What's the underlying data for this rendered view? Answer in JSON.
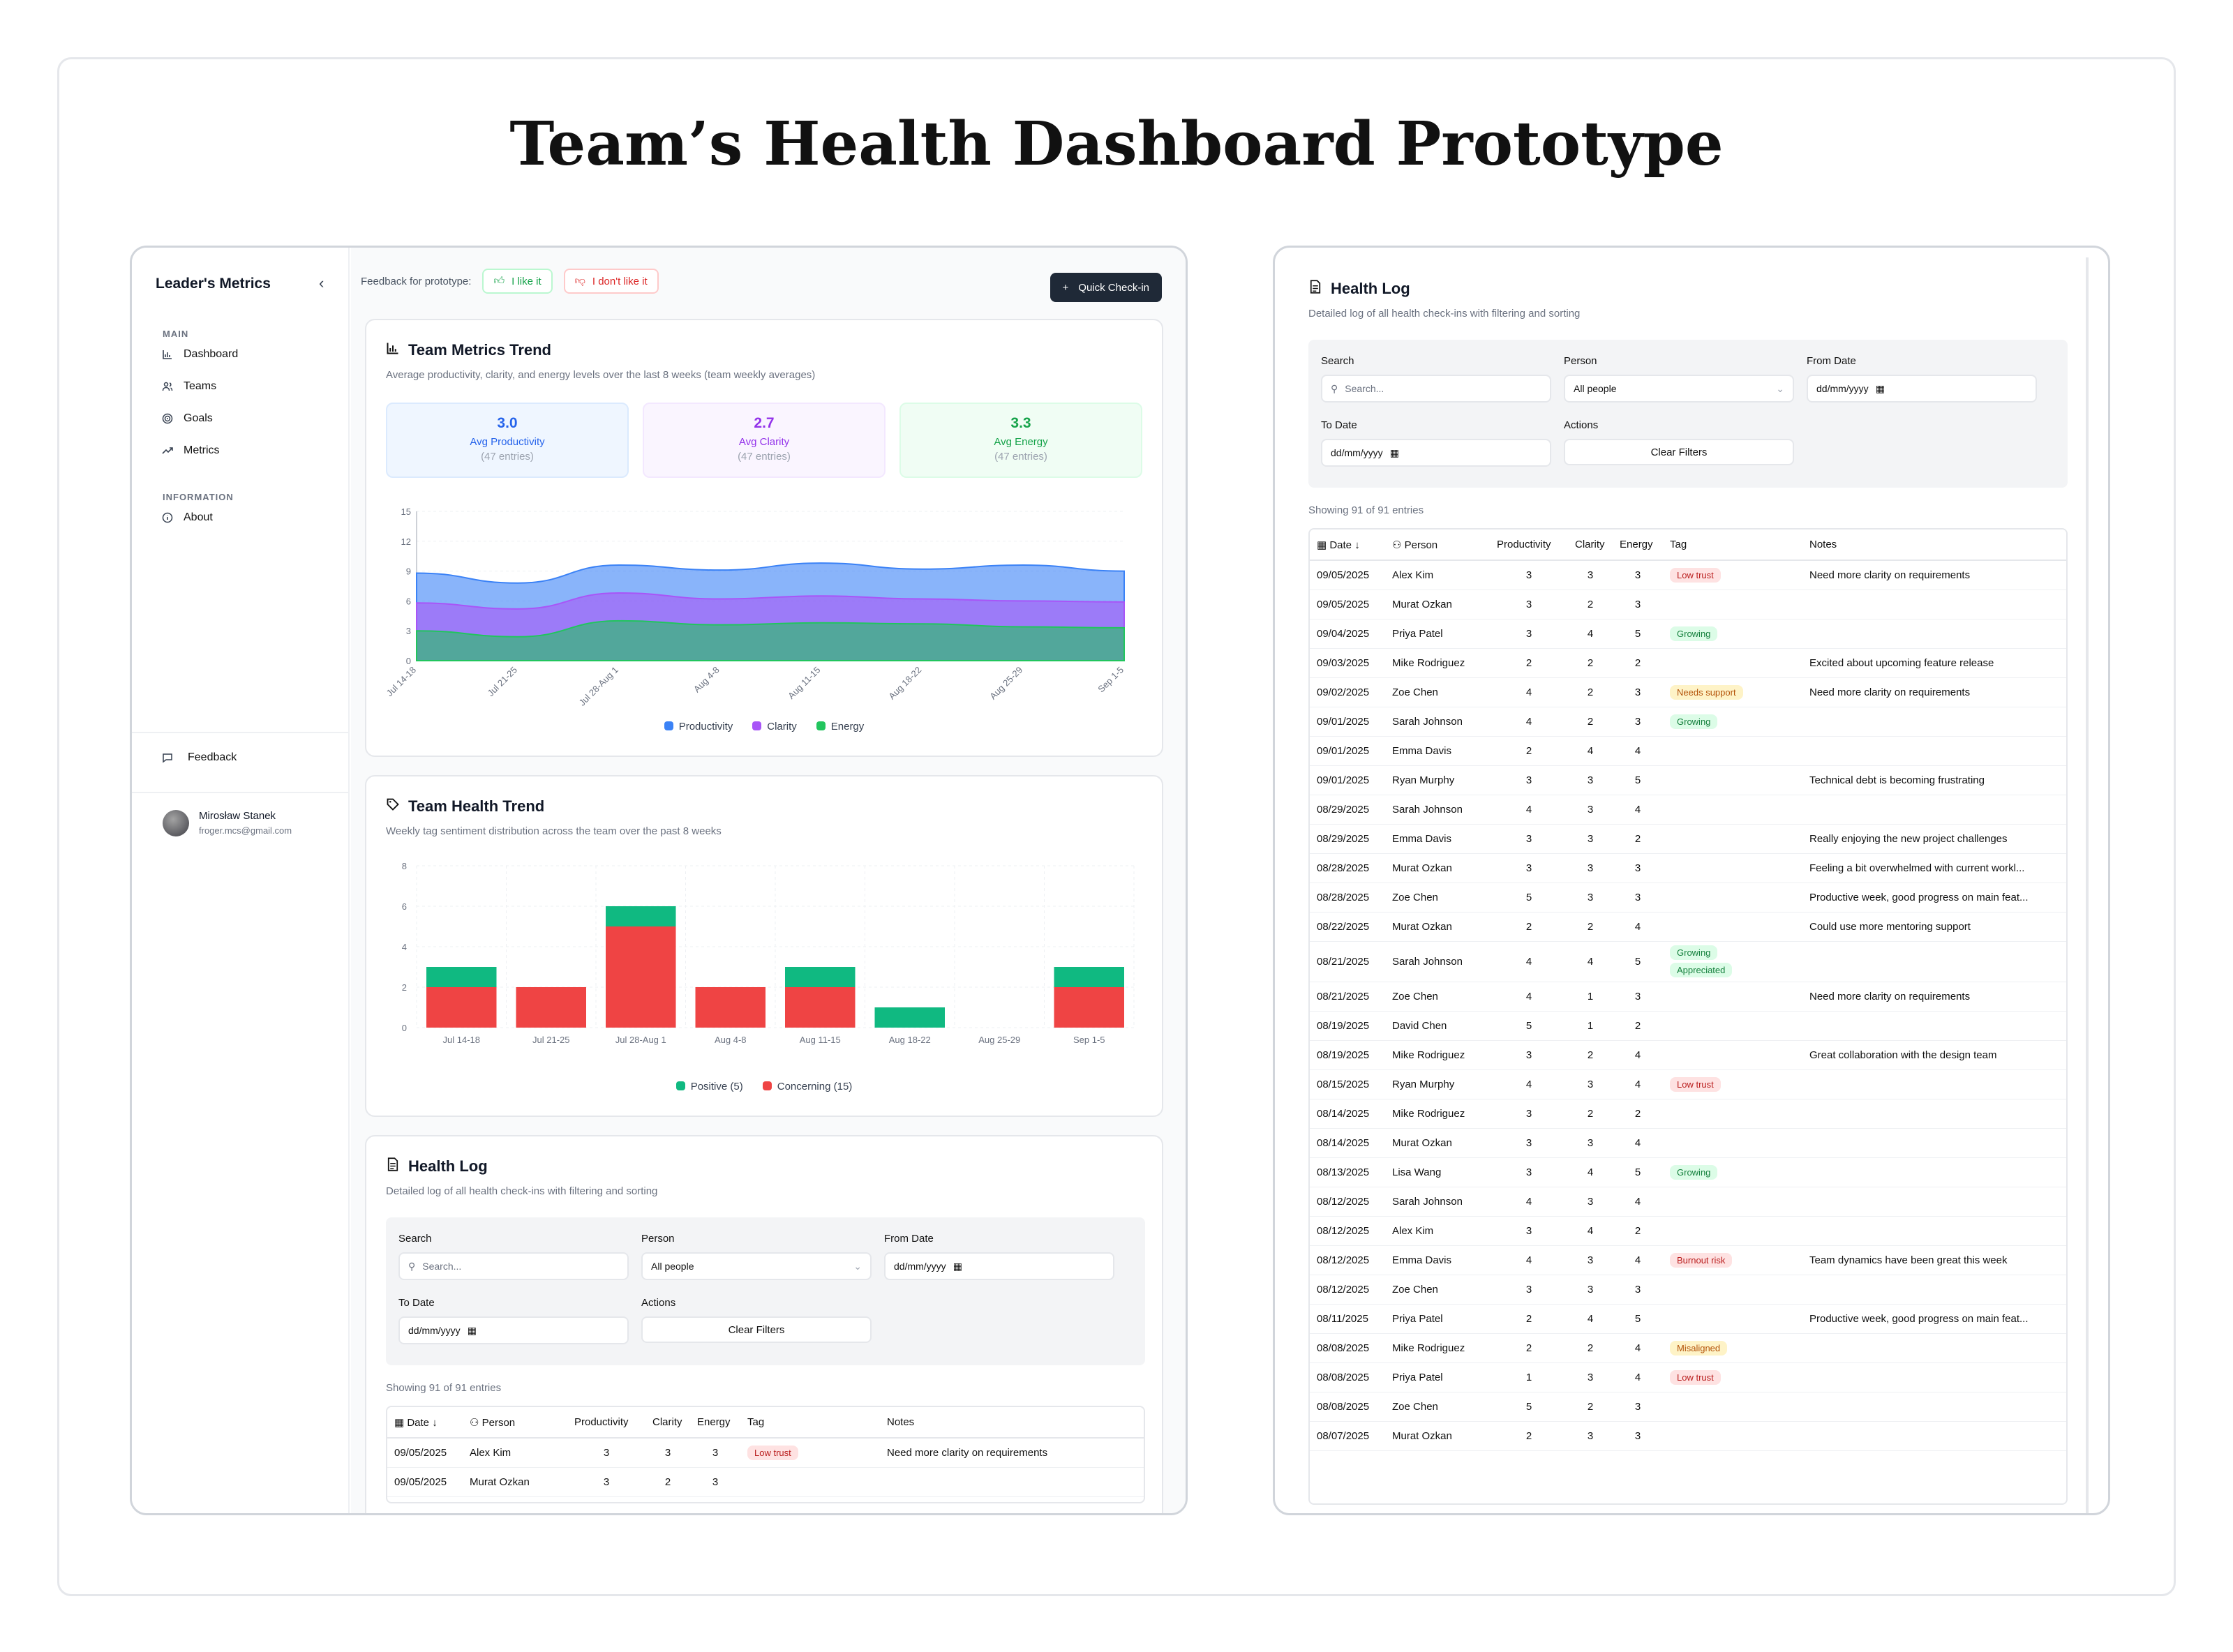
{
  "page_title": "Team’s Health Dashboard Prototype",
  "sidebar": {
    "brand": "Leader's Metrics",
    "collapse_icon": "chevron-left-icon",
    "main_label": "MAIN",
    "items": [
      {
        "label": "Dashboard",
        "icon": "bar-chart-icon"
      },
      {
        "label": "Teams",
        "icon": "users-icon"
      },
      {
        "label": "Goals",
        "icon": "target-icon"
      },
      {
        "label": "Metrics",
        "icon": "trending-up-icon"
      }
    ],
    "info_label": "INFORMATION",
    "about": "About",
    "feedback": "Feedback",
    "user": {
      "name": "Mirosław Stanek",
      "email": "froger.mcs@gmail.com"
    }
  },
  "topbar": {
    "feedback_label": "Feedback for prototype:",
    "like": "I like it",
    "dislike": "I don't like it",
    "quick_checkin": "Quick Check-in"
  },
  "metrics_card": {
    "title": "Team Metrics Trend",
    "subtitle": "Average productivity, clarity, and energy levels over the last 8 weeks (team weekly averages)",
    "stats": [
      {
        "value": "3.0",
        "label": "Avg Productivity",
        "entries": "(47 entries)"
      },
      {
        "value": "2.7",
        "label": "Avg Clarity",
        "entries": "(47 entries)"
      },
      {
        "value": "3.3",
        "label": "Avg Energy",
        "entries": "(47 entries)"
      }
    ],
    "legend": [
      "Productivity",
      "Clarity",
      "Energy"
    ]
  },
  "health_card": {
    "title": "Team Health Trend",
    "subtitle": "Weekly tag sentiment distribution across the team over the past 8 weeks",
    "legend": [
      "Positive (5)",
      "Concerning (15)"
    ]
  },
  "chart_data": [
    {
      "type": "area",
      "title": "Team Metrics Trend",
      "categories": [
        "Jul 14-18",
        "Jul 21-25",
        "Jul 28-Aug 1",
        "Aug 4-8",
        "Aug 11-15",
        "Aug 18-22",
        "Aug 25-29",
        "Sep 1-5"
      ],
      "ylim": [
        0,
        15
      ],
      "yticks": [
        0,
        3,
        6,
        9,
        12,
        15
      ],
      "stacked": true,
      "series": [
        {
          "name": "Energy",
          "color": "#22c55e",
          "values": [
            3.0,
            2.4,
            4.0,
            3.6,
            3.8,
            3.7,
            3.4,
            3.3
          ]
        },
        {
          "name": "Clarity",
          "color": "#a855f7",
          "values": [
            2.8,
            2.8,
            2.8,
            2.6,
            2.7,
            2.5,
            2.6,
            2.6
          ]
        },
        {
          "name": "Productivity",
          "color": "#3b82f6",
          "values": [
            3.0,
            2.6,
            2.8,
            2.9,
            3.3,
            3.0,
            3.6,
            3.1
          ]
        }
      ]
    },
    {
      "type": "bar",
      "title": "Team Health Trend",
      "categories": [
        "Jul 14-18",
        "Jul 21-25",
        "Jul 28-Aug 1",
        "Aug 4-8",
        "Aug 11-15",
        "Aug 18-22",
        "Aug 25-29",
        "Sep 1-5"
      ],
      "ylim": [
        0,
        8
      ],
      "yticks": [
        0,
        2,
        4,
        6,
        8
      ],
      "stacked": true,
      "series": [
        {
          "name": "Concerning",
          "color": "#ef4444",
          "values": [
            2,
            2,
            5,
            2,
            2,
            0,
            0,
            2
          ]
        },
        {
          "name": "Positive",
          "color": "#10b981",
          "values": [
            1,
            0,
            1,
            0,
            1,
            1,
            0,
            1
          ]
        }
      ]
    }
  ],
  "health_log": {
    "title": "Health Log",
    "subtitle": "Detailed log of all health check-ins with filtering and sorting",
    "filters": {
      "search_label": "Search",
      "search_placeholder": "Search...",
      "person_label": "Person",
      "person_value": "All people",
      "from_label": "From Date",
      "from_value": "dd/mm/yyyy",
      "to_label": "To Date",
      "to_value": "dd/mm/yyyy",
      "actions_label": "Actions",
      "clear": "Clear Filters"
    },
    "showing": "Showing 91 of 91 entries",
    "columns": [
      "Date ↓",
      "Person",
      "Productivity",
      "Clarity",
      "Energy",
      "Tag",
      "Notes"
    ],
    "rows": [
      [
        "09/05/2025",
        "Alex Kim",
        3,
        3,
        3,
        [
          "Low trust"
        ],
        "Need more clarity on requirements"
      ],
      [
        "09/05/2025",
        "Murat Ozkan",
        3,
        2,
        3,
        [],
        ""
      ],
      [
        "09/04/2025",
        "Priya Patel",
        3,
        4,
        5,
        [
          "Growing"
        ],
        ""
      ],
      [
        "09/03/2025",
        "Mike Rodriguez",
        2,
        2,
        2,
        [],
        "Excited about upcoming feature release"
      ],
      [
        "09/02/2025",
        "Zoe Chen",
        4,
        2,
        3,
        [
          "Needs support"
        ],
        "Need more clarity on requirements"
      ],
      [
        "09/01/2025",
        "Sarah Johnson",
        4,
        2,
        3,
        [
          "Growing"
        ],
        ""
      ],
      [
        "09/01/2025",
        "Emma Davis",
        2,
        4,
        4,
        [],
        ""
      ],
      [
        "09/01/2025",
        "Ryan Murphy",
        3,
        3,
        5,
        [],
        "Technical debt is becoming frustrating"
      ],
      [
        "08/29/2025",
        "Sarah Johnson",
        4,
        3,
        4,
        [],
        ""
      ],
      [
        "08/29/2025",
        "Emma Davis",
        3,
        3,
        2,
        [],
        "Really enjoying the new project challenges"
      ],
      [
        "08/28/2025",
        "Murat Ozkan",
        3,
        3,
        3,
        [],
        "Feeling a bit overwhelmed with current workl..."
      ],
      [
        "08/28/2025",
        "Zoe Chen",
        5,
        3,
        3,
        [],
        "Productive week, good progress on main feat..."
      ],
      [
        "08/22/2025",
        "Murat Ozkan",
        2,
        2,
        4,
        [],
        "Could use more mentoring support"
      ],
      [
        "08/21/2025",
        "Sarah Johnson",
        4,
        4,
        5,
        [
          "Growing",
          "Appreciated"
        ],
        ""
      ],
      [
        "08/21/2025",
        "Zoe Chen",
        4,
        1,
        3,
        [],
        "Need more clarity on requirements"
      ],
      [
        "08/19/2025",
        "David Chen",
        5,
        1,
        2,
        [],
        ""
      ],
      [
        "08/19/2025",
        "Mike Rodriguez",
        3,
        2,
        4,
        [],
        "Great collaboration with the design team"
      ],
      [
        "08/15/2025",
        "Ryan Murphy",
        4,
        3,
        4,
        [
          "Low trust"
        ],
        ""
      ],
      [
        "08/14/2025",
        "Mike Rodriguez",
        3,
        2,
        2,
        [],
        ""
      ],
      [
        "08/14/2025",
        "Murat Ozkan",
        3,
        3,
        4,
        [],
        ""
      ],
      [
        "08/13/2025",
        "Lisa Wang",
        3,
        4,
        5,
        [
          "Growing"
        ],
        ""
      ],
      [
        "08/12/2025",
        "Sarah Johnson",
        4,
        3,
        4,
        [],
        ""
      ],
      [
        "08/12/2025",
        "Alex Kim",
        3,
        4,
        2,
        [],
        ""
      ],
      [
        "08/12/2025",
        "Emma Davis",
        4,
        3,
        4,
        [
          "Burnout risk"
        ],
        "Team dynamics have been great this week"
      ],
      [
        "08/12/2025",
        "Zoe Chen",
        3,
        3,
        3,
        [],
        ""
      ],
      [
        "08/11/2025",
        "Priya Patel",
        2,
        4,
        5,
        [],
        "Productive week, good progress on main feat..."
      ],
      [
        "08/08/2025",
        "Mike Rodriguez",
        2,
        2,
        4,
        [
          "Misaligned"
        ],
        ""
      ],
      [
        "08/08/2025",
        "Priya Patel",
        1,
        3,
        4,
        [
          "Low trust"
        ],
        ""
      ],
      [
        "08/08/2025",
        "Zoe Chen",
        5,
        2,
        3,
        [],
        ""
      ],
      [
        "08/07/2025",
        "Murat Ozkan",
        2,
        3,
        3,
        [],
        ""
      ]
    ],
    "tag_colors": {
      "Low trust": {
        "bg": "#fee2e2",
        "fg": "#b91c1c"
      },
      "Growing": {
        "bg": "#dcfce7",
        "fg": "#15803d"
      },
      "Needs support": {
        "bg": "#fef3c7",
        "fg": "#b45309"
      },
      "Appreciated": {
        "bg": "#dcfce7",
        "fg": "#15803d"
      },
      "Burnout risk": {
        "bg": "#fee2e2",
        "fg": "#b91c1c"
      },
      "Misaligned": {
        "bg": "#fef3c7",
        "fg": "#b45309"
      }
    }
  }
}
